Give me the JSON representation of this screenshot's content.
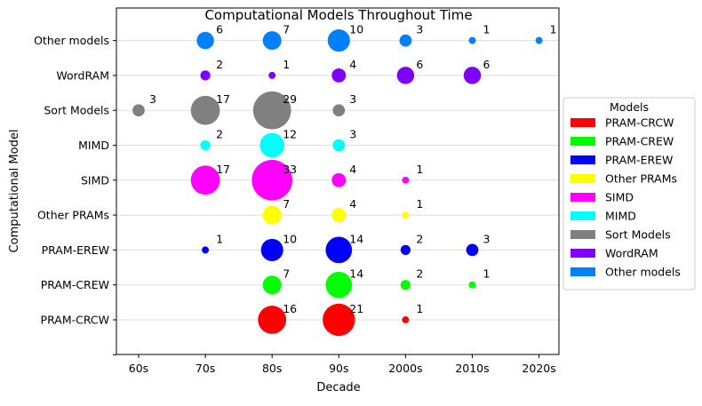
{
  "chart_data": {
    "type": "scatter",
    "title": "Computational Models Throughout Time",
    "xlabel": "Decade",
    "ylabel": "Computational Model",
    "x_categories": [
      "60s",
      "70s",
      "80s",
      "90s",
      "2000s",
      "2010s",
      "2020s"
    ],
    "y_categories": [
      "PRAM-CRCW",
      "PRAM-CREW",
      "PRAM-EREW",
      "Other PRAMs",
      "SIMD",
      "MIMD",
      "Sort Models",
      "WordRAM",
      "Other models"
    ],
    "grid": "horizontal",
    "legend": {
      "title": "Models",
      "placement": "right"
    },
    "series": [
      {
        "name": "PRAM-CRCW",
        "color": "#ff0000",
        "points": [
          {
            "x": "80s",
            "count": 16
          },
          {
            "x": "90s",
            "count": 21
          },
          {
            "x": "2000s",
            "count": 1
          }
        ]
      },
      {
        "name": "PRAM-CREW",
        "color": "#00ff00",
        "points": [
          {
            "x": "80s",
            "count": 7
          },
          {
            "x": "90s",
            "count": 14
          },
          {
            "x": "2000s",
            "count": 2
          },
          {
            "x": "2010s",
            "count": 1
          }
        ]
      },
      {
        "name": "PRAM-EREW",
        "color": "#0000ff",
        "points": [
          {
            "x": "70s",
            "count": 1
          },
          {
            "x": "80s",
            "count": 10
          },
          {
            "x": "90s",
            "count": 14
          },
          {
            "x": "2000s",
            "count": 2
          },
          {
            "x": "2010s",
            "count": 3
          }
        ]
      },
      {
        "name": "Other PRAMs",
        "color": "#ffff00",
        "points": [
          {
            "x": "80s",
            "count": 7
          },
          {
            "x": "90s",
            "count": 4
          },
          {
            "x": "2000s",
            "count": 1
          }
        ]
      },
      {
        "name": "SIMD",
        "color": "#ff00ff",
        "points": [
          {
            "x": "70s",
            "count": 17
          },
          {
            "x": "80s",
            "count": 33
          },
          {
            "x": "90s",
            "count": 4
          },
          {
            "x": "2000s",
            "count": 1
          }
        ]
      },
      {
        "name": "MIMD",
        "color": "#00ffff",
        "points": [
          {
            "x": "70s",
            "count": 2
          },
          {
            "x": "80s",
            "count": 12
          },
          {
            "x": "90s",
            "count": 3
          }
        ]
      },
      {
        "name": "Sort Models",
        "color": "#808080",
        "points": [
          {
            "x": "60s",
            "count": 3
          },
          {
            "x": "70s",
            "count": 17
          },
          {
            "x": "80s",
            "count": 29
          },
          {
            "x": "90s",
            "count": 3
          }
        ]
      },
      {
        "name": "WordRAM",
        "color": "#8000ff",
        "points": [
          {
            "x": "70s",
            "count": 2
          },
          {
            "x": "80s",
            "count": 1
          },
          {
            "x": "90s",
            "count": 4
          },
          {
            "x": "2000s",
            "count": 6
          },
          {
            "x": "2010s",
            "count": 6
          }
        ]
      },
      {
        "name": "Other models",
        "color": "#0080ff",
        "points": [
          {
            "x": "70s",
            "count": 6
          },
          {
            "x": "80s",
            "count": 7
          },
          {
            "x": "90s",
            "count": 10
          },
          {
            "x": "2000s",
            "count": 3
          },
          {
            "x": "2010s",
            "count": 1
          },
          {
            "x": "2020s",
            "count": 1
          }
        ]
      }
    ]
  }
}
